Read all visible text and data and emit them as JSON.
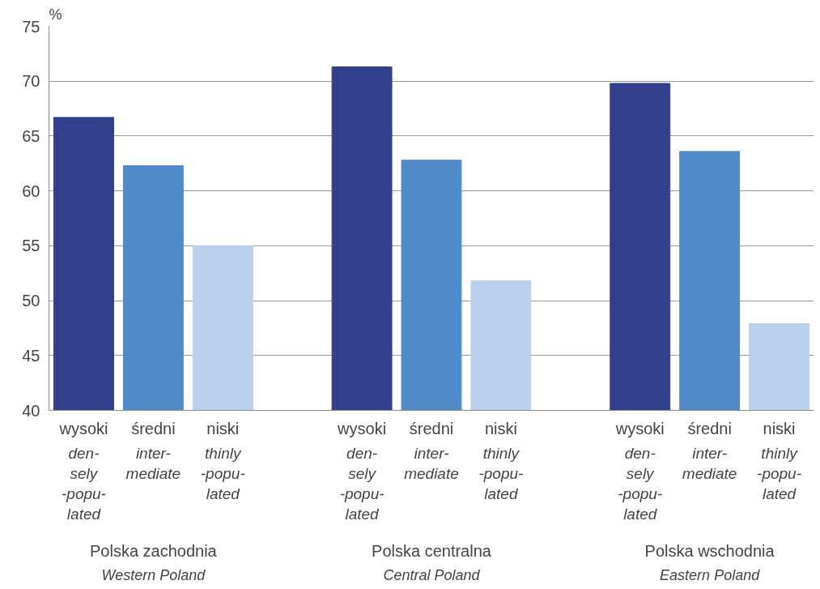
{
  "chart_data": {
    "type": "bar",
    "ylabel": "%",
    "categories": [
      "wysoki\nden-\nsely\n-popu-\nlated",
      "średni\ninter-\nmediate",
      "niski\nthinly\n-popu-\nlated",
      null,
      "wysoki\nden-\nsely\n-popu-\nlated",
      "średni\ninter-\nmediate",
      "niski\nthinly\n-popu-\nlated",
      null,
      "wysoki\nden-\nsely\n-popu-\nlated",
      "średni\ninter-\nmediate",
      "niski\nthinly\n-popu-\nlated"
    ],
    "values": [
      66.7,
      62.3,
      55.0,
      null,
      71.3,
      62.8,
      51.8,
      null,
      69.8,
      63.6,
      47.9
    ],
    "colors": [
      "#323f8c",
      "#5189c9",
      "#b9d0ec",
      null,
      "#323f8c",
      "#5189c9",
      "#b9d0ec",
      null,
      "#323f8c",
      "#5189c9",
      "#b9d0ec"
    ],
    "ylim": [
      40,
      75
    ],
    "yticks": [
      40,
      45,
      50,
      55,
      60,
      65,
      70,
      75
    ],
    "grid": "y",
    "annotations": [
      "Polska zachodnia\nWestern Poland",
      "Polska centralna\nCentral Poland",
      "Polska wschodnia\nEastern Poland"
    ]
  }
}
